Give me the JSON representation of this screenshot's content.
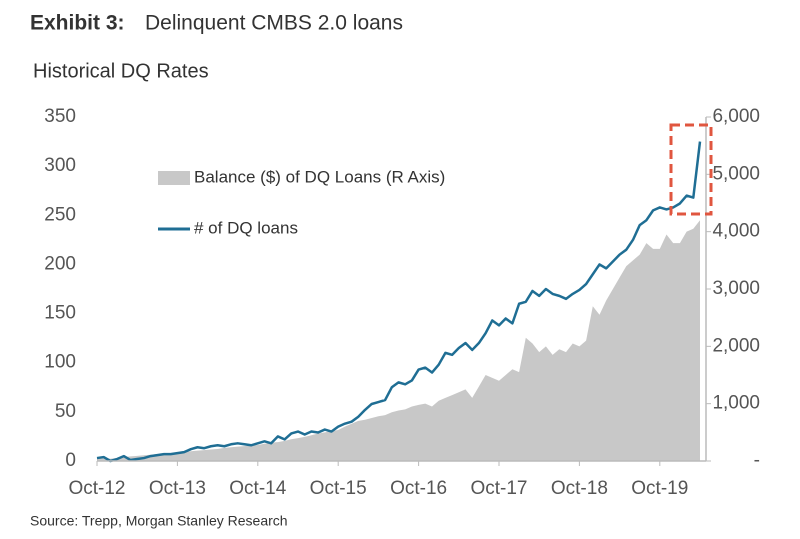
{
  "chart_data": {
    "type": "area-line",
    "exhibit": "Exhibit 3:",
    "title": "Delinquent CMBS 2.0 loans",
    "subtitle": "Historical DQ Rates",
    "source": "Source: Trepp, Morgan Stanley Research",
    "categories": [
      "Oct-12",
      null,
      null,
      null,
      null,
      null,
      null,
      null,
      null,
      null,
      null,
      null,
      "Oct-13",
      null,
      null,
      null,
      null,
      null,
      null,
      null,
      null,
      null,
      null,
      null,
      "Oct-14",
      null,
      null,
      null,
      null,
      null,
      null,
      null,
      null,
      null,
      null,
      null,
      "Oct-15",
      null,
      null,
      null,
      null,
      null,
      null,
      null,
      null,
      null,
      null,
      null,
      "Oct-16",
      null,
      null,
      null,
      null,
      null,
      null,
      null,
      null,
      null,
      null,
      null,
      "Oct-17",
      null,
      null,
      null,
      null,
      null,
      null,
      null,
      null,
      null,
      null,
      null,
      "Oct-18",
      null,
      null,
      null,
      null,
      null,
      null,
      null,
      null,
      null,
      null,
      null,
      "Oct-19",
      null,
      null,
      null,
      null,
      null,
      null
    ],
    "series": [
      {
        "name": "Balance ($) of DQ Loans (R Axis)",
        "color": "#c8c8c8",
        "axis": "y2",
        "kind": "area",
        "values": [
          50,
          60,
          40,
          55,
          70,
          80,
          90,
          100,
          110,
          120,
          130,
          140,
          150,
          160,
          170,
          180,
          190,
          200,
          210,
          230,
          240,
          250,
          260,
          270,
          280,
          300,
          320,
          330,
          350,
          380,
          400,
          420,
          450,
          480,
          500,
          520,
          540,
          600,
          650,
          700,
          720,
          750,
          780,
          800,
          850,
          880,
          900,
          950,
          980,
          1000,
          950,
          1050,
          1100,
          1150,
          1200,
          1250,
          1100,
          1300,
          1500,
          1450,
          1400,
          1500,
          1600,
          1550,
          2150,
          2050,
          1900,
          2000,
          1850,
          1950,
          1900,
          2050,
          2000,
          2100,
          2700,
          2550,
          2800,
          3000,
          3200,
          3400,
          3500,
          3600,
          3800,
          3700,
          3700,
          3950,
          3800,
          3800,
          4000,
          4050,
          4200
        ]
      },
      {
        "name": "# of DQ loans",
        "color": "#1f6e94",
        "kind": "line",
        "values": [
          3,
          4,
          0,
          2,
          5,
          1,
          2,
          3,
          5,
          6,
          7,
          7,
          8,
          9,
          12,
          14,
          13,
          15,
          16,
          15,
          17,
          18,
          17,
          16,
          18,
          20,
          18,
          25,
          22,
          28,
          30,
          27,
          30,
          29,
          32,
          30,
          35,
          38,
          40,
          45,
          52,
          58,
          60,
          62,
          75,
          80,
          78,
          82,
          93,
          95,
          90,
          98,
          110,
          108,
          115,
          120,
          113,
          120,
          130,
          143,
          138,
          145,
          140,
          160,
          162,
          173,
          168,
          175,
          170,
          168,
          165,
          170,
          174,
          180,
          190,
          200,
          196,
          203,
          210,
          215,
          225,
          240,
          245,
          255,
          258,
          256,
          258,
          262,
          270,
          268,
          325
        ]
      }
    ],
    "ylim": [
      0,
      350
    ],
    "yticks": [
      0,
      50,
      100,
      150,
      200,
      250,
      300,
      350
    ],
    "y2lim": [
      0,
      6000
    ],
    "y2ticks": [
      {
        "value": 0,
        "label": "-"
      },
      {
        "value": 1000,
        "label": "1,000"
      },
      {
        "value": 2000,
        "label": "2,000"
      },
      {
        "value": 3000,
        "label": "3,000"
      },
      {
        "value": 4000,
        "label": "4,000"
      },
      {
        "value": 5000,
        "label": "5,000"
      },
      {
        "value": 6000,
        "label": "6,000"
      }
    ],
    "grid": false
  }
}
